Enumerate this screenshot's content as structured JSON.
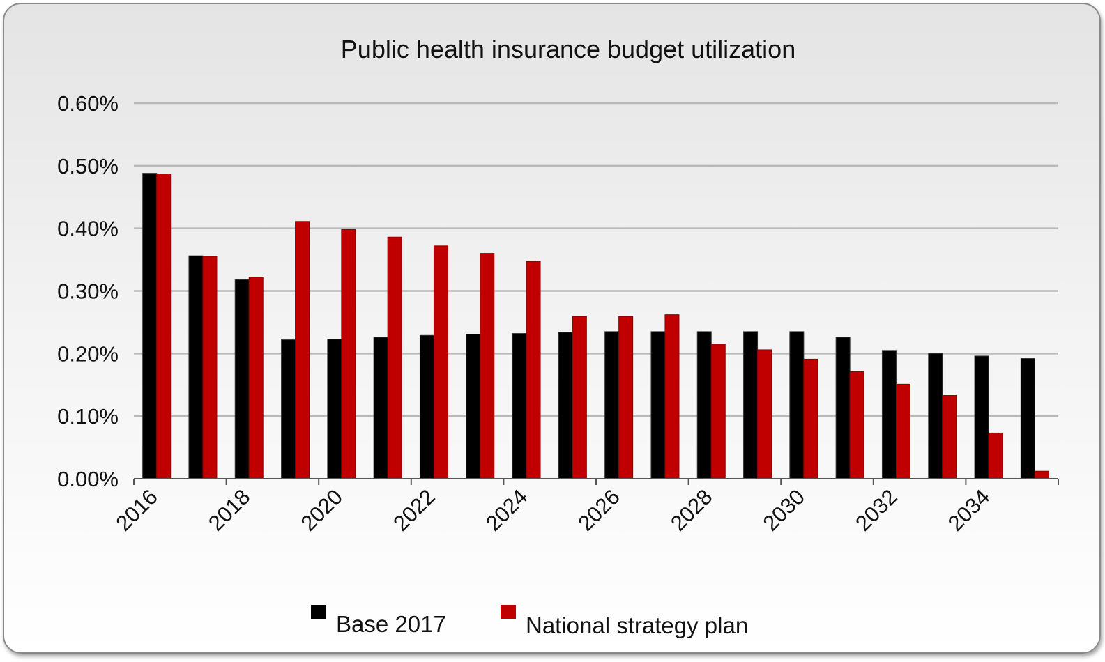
{
  "chart_data": {
    "type": "bar",
    "title": "Public health insurance budget utilization",
    "xlabel": "",
    "ylabel": "",
    "categories": [
      "2016",
      "2017",
      "2018",
      "2019",
      "2020",
      "2021",
      "2022",
      "2023",
      "2024",
      "2025",
      "2026",
      "2027",
      "2028",
      "2029",
      "2030",
      "2031",
      "2032",
      "2033",
      "2034",
      "2035"
    ],
    "x_tick_labels": [
      "2016",
      "2018",
      "2020",
      "2022",
      "2024",
      "2026",
      "2028",
      "2030",
      "2032",
      "2034"
    ],
    "y_tick_labels": [
      "0.00%",
      "0.10%",
      "0.20%",
      "0.30%",
      "0.40%",
      "0.50%",
      "0.60%"
    ],
    "ylim": [
      0,
      0.006
    ],
    "grid": true,
    "legend_position": "bottom",
    "series": [
      {
        "name": "Base 2017",
        "color": "#000000",
        "values": [
          0.00488,
          0.00356,
          0.00318,
          0.00222,
          0.00223,
          0.00226,
          0.00229,
          0.00231,
          0.00232,
          0.00234,
          0.00235,
          0.00235,
          0.00235,
          0.00235,
          0.00235,
          0.00226,
          0.00205,
          0.002,
          0.00196,
          0.00192
        ]
      },
      {
        "name": "National strategy plan",
        "color": "#c00000",
        "values": [
          0.00487,
          0.00355,
          0.00322,
          0.00411,
          0.00398,
          0.00386,
          0.00372,
          0.0036,
          0.00347,
          0.00259,
          0.00259,
          0.00262,
          0.00215,
          0.00206,
          0.00191,
          0.00171,
          0.00151,
          0.00133,
          0.00073,
          0.00012
        ]
      }
    ]
  }
}
